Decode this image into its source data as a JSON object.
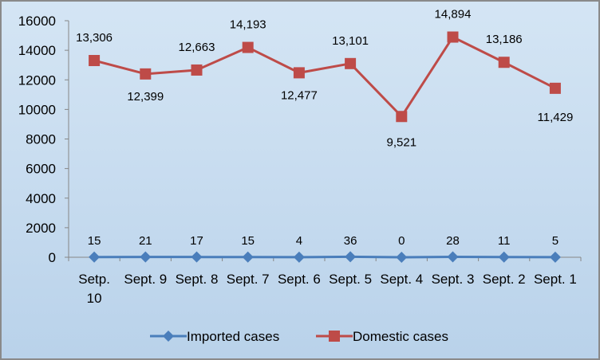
{
  "chart_data": {
    "type": "line",
    "categories": [
      "Setp. 10",
      "Sept. 9",
      "Sept. 8",
      "Sept. 7",
      "Sept. 6",
      "Sept. 5",
      "Sept. 4",
      "Sept. 3",
      "Sept. 2",
      "Sept. 1"
    ],
    "category_lines": [
      [
        "Setp.",
        "10"
      ],
      [
        "Sept. 9"
      ],
      [
        "Sept. 8"
      ],
      [
        "Sept. 7"
      ],
      [
        "Sept. 6"
      ],
      [
        "Sept. 5"
      ],
      [
        "Sept. 4"
      ],
      [
        "Sept. 3"
      ],
      [
        "Sept. 2"
      ],
      [
        "Sept. 1"
      ]
    ],
    "series": [
      {
        "name": "Imported cases",
        "color": "#4a7ebb",
        "marker": "diamond",
        "values": [
          15,
          21,
          17,
          15,
          4,
          36,
          0,
          28,
          11,
          5
        ],
        "labels": [
          "15",
          "21",
          "17",
          "15",
          "4",
          "36",
          "0",
          "28",
          "11",
          "5"
        ]
      },
      {
        "name": "Domestic cases",
        "color": "#be4b48",
        "marker": "square",
        "values": [
          13306,
          12399,
          12663,
          14193,
          12477,
          13101,
          9521,
          14894,
          13186,
          11429
        ],
        "labels": [
          "13,306",
          "12,399",
          "12,663",
          "14,193",
          "12,477",
          "13,101",
          "9,521",
          "14,894",
          "13,186",
          "11,429"
        ]
      }
    ],
    "y_ticks": [
      "0",
      "2000",
      "4000",
      "6000",
      "8000",
      "10000",
      "12000",
      "14000",
      "16000"
    ],
    "ylim": [
      0,
      16000
    ],
    "grid": false,
    "legend": "bottom"
  }
}
